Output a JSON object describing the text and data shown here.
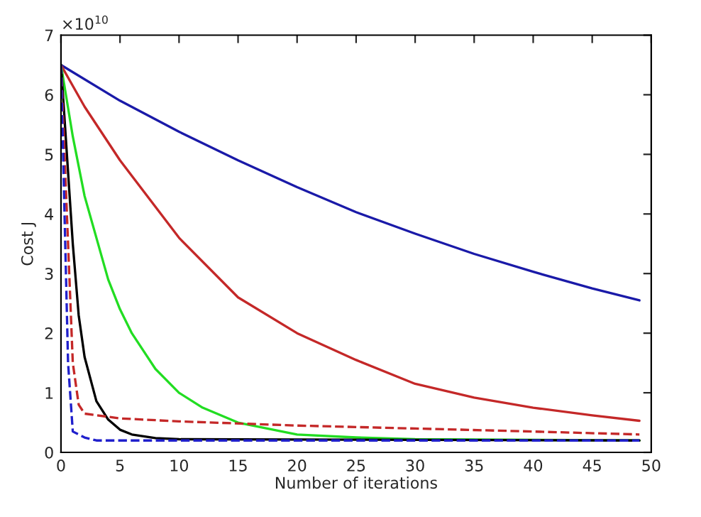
{
  "chart_data": {
    "type": "line",
    "xlabel": "Number of iterations",
    "ylabel": "Cost J",
    "annotations": [
      "×10$^{10}$"
    ],
    "xlim": [
      0,
      50
    ],
    "xticks": [
      0,
      5,
      10,
      15,
      20,
      25,
      30,
      35,
      40,
      45,
      50
    ],
    "ylim": [
      0,
      7
    ],
    "yticks": [
      0,
      1,
      2,
      3,
      4,
      5,
      6,
      7
    ],
    "grid": false,
    "legend": false,
    "marker": "none",
    "series": [
      {
        "color": "#1a1aa8",
        "line_style": "solid",
        "x": [
          0,
          5,
          10,
          15,
          20,
          25,
          30,
          35,
          40,
          45,
          49
        ],
        "values": [
          6.5,
          5.9,
          5.38,
          4.9,
          4.45,
          4.03,
          3.67,
          3.33,
          3.03,
          2.75,
          2.55
        ]
      },
      {
        "color": "#c42828",
        "line_style": "solid",
        "x": [
          0,
          2,
          5,
          10,
          15,
          20,
          25,
          30,
          35,
          40,
          45,
          49
        ],
        "values": [
          6.5,
          5.8,
          4.9,
          3.6,
          2.6,
          2.0,
          1.55,
          1.15,
          0.92,
          0.75,
          0.62,
          0.53
        ]
      },
      {
        "color": "#22dd22",
        "line_style": "solid",
        "x": [
          0,
          1,
          2,
          3,
          4,
          5,
          6,
          8,
          10,
          12,
          15,
          20,
          25,
          30,
          49
        ],
        "values": [
          6.5,
          5.3,
          4.3,
          3.6,
          2.9,
          2.4,
          2.0,
          1.4,
          1.0,
          0.75,
          0.5,
          0.3,
          0.25,
          0.22,
          0.2
        ]
      },
      {
        "color": "#000000",
        "line_style": "solid",
        "x": [
          0,
          0.5,
          1,
          1.5,
          2,
          3,
          4,
          5,
          6,
          8,
          10,
          49
        ],
        "values": [
          6.5,
          5.0,
          3.5,
          2.3,
          1.6,
          0.86,
          0.55,
          0.38,
          0.3,
          0.24,
          0.22,
          0.2
        ]
      },
      {
        "color": "#c42828",
        "line_style": "dashed",
        "x": [
          0,
          0.5,
          1,
          1.5,
          2,
          5,
          10,
          20,
          30,
          40,
          49
        ],
        "values": [
          6.5,
          4.0,
          1.5,
          0.8,
          0.65,
          0.57,
          0.52,
          0.45,
          0.4,
          0.35,
          0.3
        ]
      },
      {
        "color": "#2020cc",
        "line_style": "dashed",
        "x": [
          0,
          0.3,
          0.6,
          1,
          2,
          3,
          49
        ],
        "values": [
          6.5,
          4.0,
          1.5,
          0.35,
          0.25,
          0.2,
          0.2
        ]
      }
    ]
  }
}
